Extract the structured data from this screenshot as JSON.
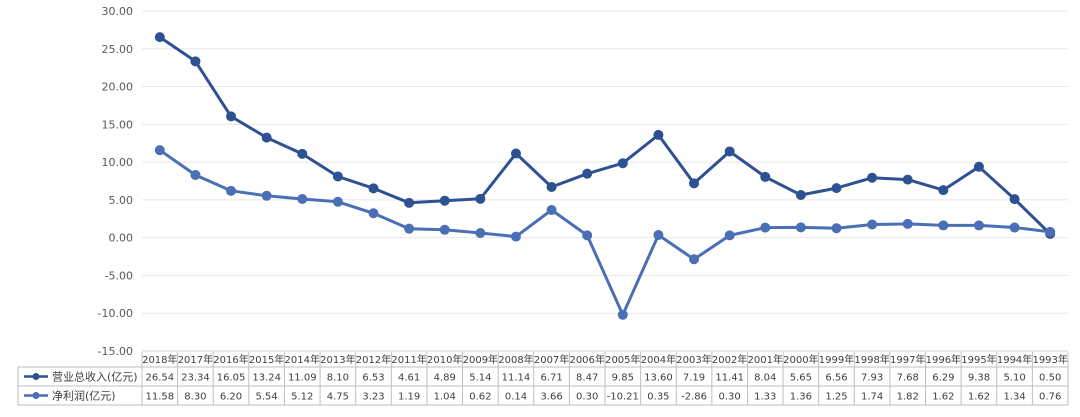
{
  "chart_data": {
    "type": "line",
    "categories": [
      "2018年",
      "2017年",
      "2016年",
      "2015年",
      "2014年",
      "2013年",
      "2012年",
      "2011年",
      "2010年",
      "2009年",
      "2008年",
      "2007年",
      "2006年",
      "2005年",
      "2004年",
      "2003年",
      "2002年",
      "2001年",
      "2000年",
      "1999年",
      "1998年",
      "1997年",
      "1996年",
      "1995年",
      "1994年",
      "1993年"
    ],
    "ylim": [
      -15,
      30
    ],
    "yticks": [
      "30.00",
      "25.00",
      "20.00",
      "15.00",
      "10.00",
      "5.00",
      "0.00",
      "-5.00",
      "-10.00",
      "-15.00"
    ],
    "ytick_values": [
      30,
      25,
      20,
      15,
      10,
      5,
      0,
      -5,
      -10,
      -15
    ],
    "grid": true,
    "legend": "data-table-left",
    "series": [
      {
        "name": "营业总收入(亿元)",
        "color": "#2e5192",
        "values": [
          26.54,
          23.34,
          16.05,
          13.24,
          11.09,
          8.1,
          6.53,
          4.61,
          4.89,
          5.14,
          11.14,
          6.71,
          8.47,
          9.85,
          13.6,
          7.19,
          11.41,
          8.04,
          5.65,
          6.56,
          7.93,
          7.68,
          6.29,
          9.38,
          5.1,
          0.5
        ],
        "labels": [
          "26.54",
          "23.34",
          "16.05",
          "13.24",
          "11.09",
          "8.10",
          "6.53",
          "4.61",
          "4.89",
          "5.14",
          "11.14",
          "6.71",
          "8.47",
          "9.85",
          "13.60",
          "7.19",
          "11.41",
          "8.04",
          "5.65",
          "6.56",
          "7.93",
          "7.68",
          "6.29",
          "9.38",
          "5.10",
          "0.50"
        ]
      },
      {
        "name": "净利润(亿元)",
        "color": "#4a6fb5",
        "values": [
          11.58,
          8.3,
          6.2,
          5.54,
          5.12,
          4.75,
          3.23,
          1.19,
          1.04,
          0.62,
          0.14,
          3.66,
          0.3,
          -10.21,
          0.35,
          -2.86,
          0.3,
          1.33,
          1.36,
          1.25,
          1.74,
          1.82,
          1.62,
          1.62,
          1.34,
          0.76
        ],
        "labels": [
          "11.58",
          "8.30",
          "6.20",
          "5.54",
          "5.12",
          "4.75",
          "3.23",
          "1.19",
          "1.04",
          "0.62",
          "0.14",
          "3.66",
          "0.30",
          "-10.21",
          "0.35",
          "-2.86",
          "0.30",
          "1.33",
          "1.36",
          "1.25",
          "1.74",
          "1.82",
          "1.62",
          "1.62",
          "1.34",
          "0.76"
        ]
      }
    ]
  }
}
